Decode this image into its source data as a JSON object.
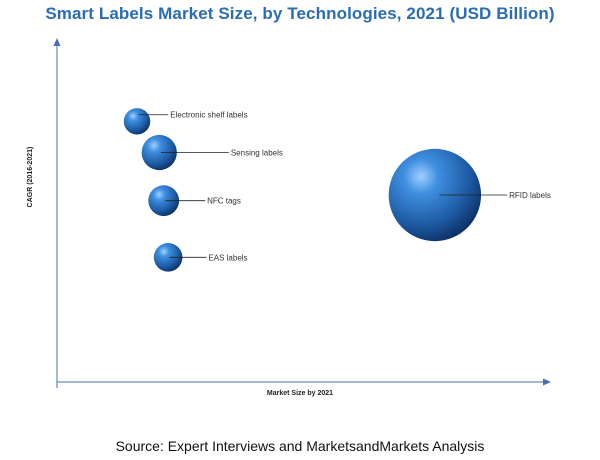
{
  "title": "Smart Labels Market Size, by Technologies, 2021 (USD Billion)",
  "source": "Source: Expert Interviews and MarketsandMarkets Analysis",
  "chart_data": {
    "type": "scatter",
    "title": "Smart Labels Market Size, by Technologies, 2021 (USD Billion)",
    "xlabel": "Market Size by 2021",
    "ylabel": "CAGR (2016-2021)",
    "grid": false,
    "bubble_color": "#1d5aa3",
    "points": [
      {
        "label": "Electronic shelf labels",
        "x": 1.8,
        "y": 9.2,
        "size": 1.2
      },
      {
        "label": "Sensing labels",
        "x": 2.3,
        "y": 8.1,
        "size": 1.6
      },
      {
        "label": "NFC tags",
        "x": 2.4,
        "y": 6.4,
        "size": 1.4
      },
      {
        "label": "EAS labels",
        "x": 2.5,
        "y": 4.4,
        "size": 1.3
      },
      {
        "label": "RFID labels",
        "x": 8.5,
        "y": 6.6,
        "size": 4.2
      }
    ]
  }
}
